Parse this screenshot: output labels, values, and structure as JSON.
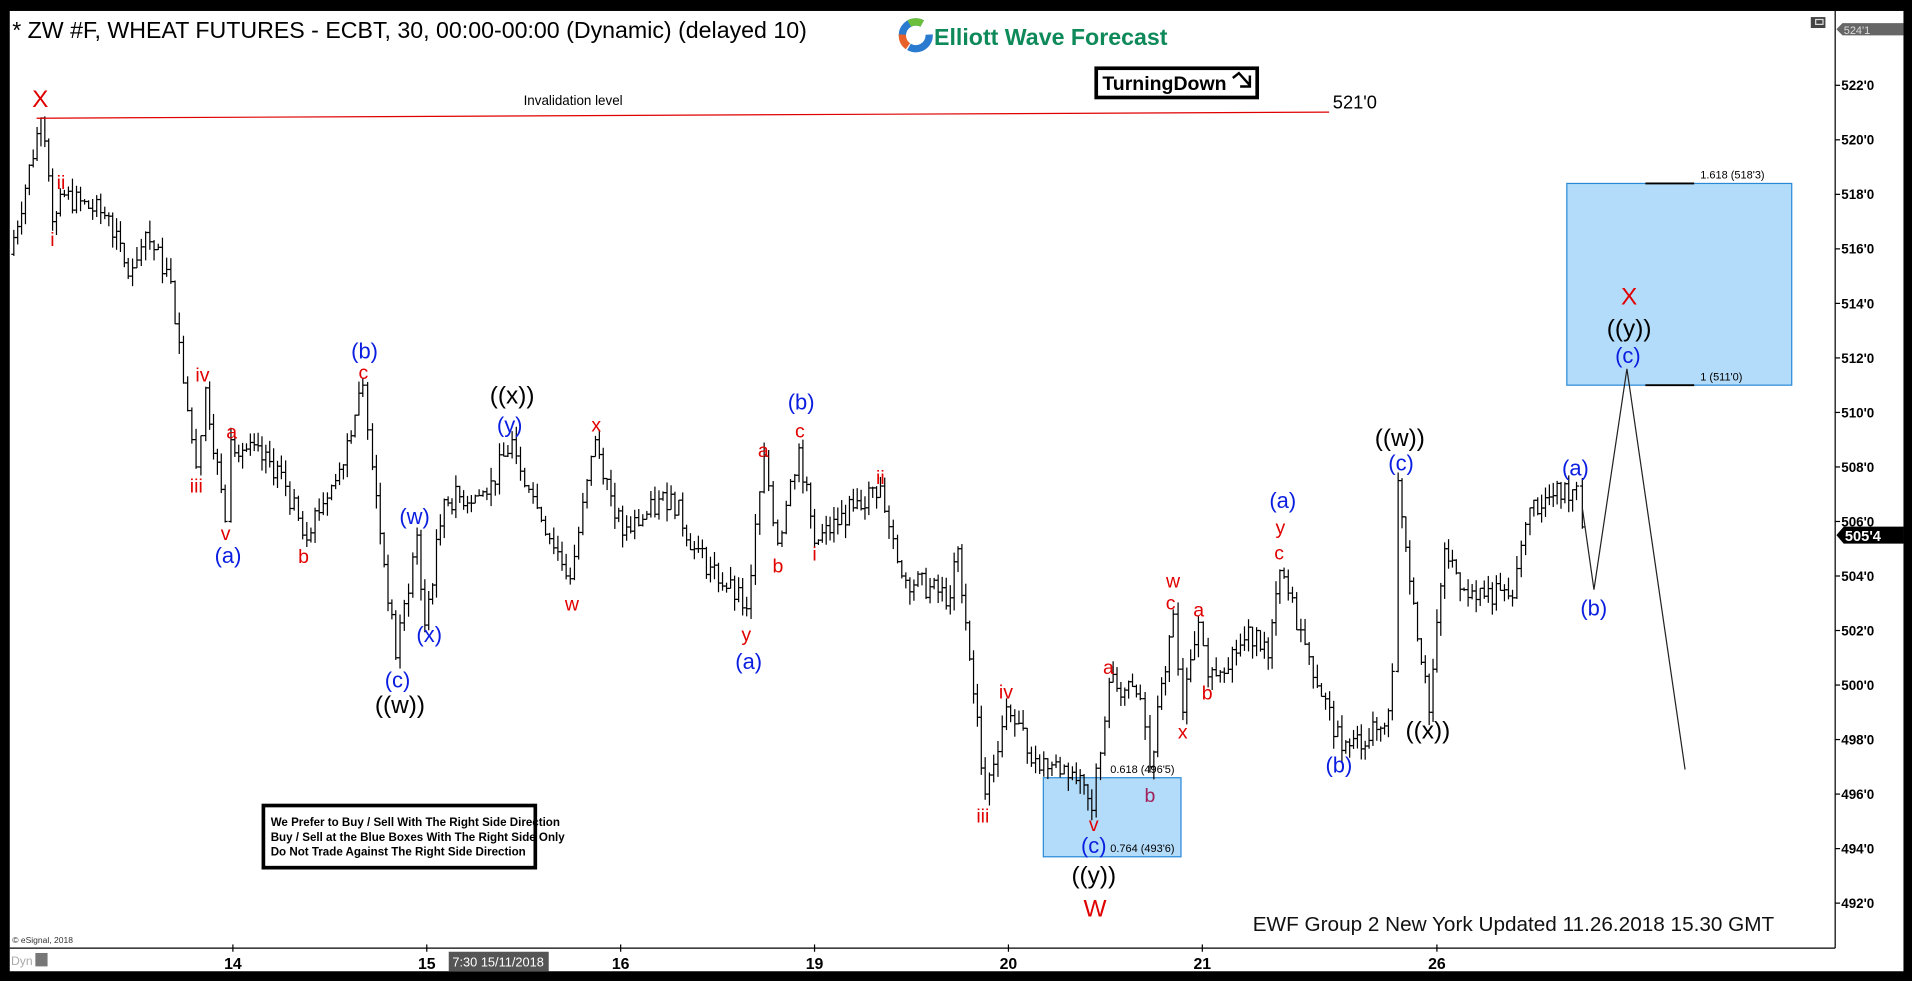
{
  "header": {
    "title": "* ZW #F, WHEAT FUTURES - ECBT, 30, 00:00-00:00 (Dynamic) (delayed 10)",
    "logo_text": "Elliott Wave Forecast",
    "turning_label": "TurningDown",
    "turning_icon": "arrow-down-right-icon"
  },
  "colors": {
    "red": "#e00000",
    "blue": "#0a1ee0",
    "black": "#000000",
    "purple": "#a0205a",
    "box_fill": "#b3dcfa",
    "box_stroke": "#2a8ad8",
    "logo_green": "#0e8a5a"
  },
  "invalidation": {
    "label": "Invalidation level",
    "value_label": "521'0",
    "price": 521.0
  },
  "notice": {
    "lines": [
      "We Prefer to Buy / Sell With The Right Side Direction",
      "Buy / Sell at the Blue Boxes With The Right Side Only",
      "Do Not Trade Against The Right Side Direction"
    ]
  },
  "footer": {
    "updated": "EWF Group 2 New York Updated 11.26.2018 15.30 GMT",
    "copyright": "© eSignal, 2018",
    "dyn": "Dyn",
    "cursor_time": "7:30 15/11/2018"
  },
  "chart_data": {
    "type": "ohlc",
    "ylim": [
      490.5,
      524.1
    ],
    "y_ticks": [
      "522'0",
      "520'0",
      "518'0",
      "516'0",
      "514'0",
      "512'0",
      "510'0",
      "508'0",
      "506'0",
      "504'0",
      "502'0",
      "500'0",
      "498'0",
      "496'0",
      "494'0",
      "492'0"
    ],
    "y_tick_values": [
      522,
      520,
      518,
      516,
      514,
      512,
      510,
      508,
      506,
      504,
      502,
      500,
      498,
      496,
      494,
      492
    ],
    "top_price_label": "524'1",
    "last_price_label": "505'4",
    "last_price": 505.5,
    "x_ticks": [
      {
        "label": "14",
        "s": 1
      },
      {
        "label": "15",
        "s": 2
      },
      {
        "label": "16",
        "s": 3
      },
      {
        "label": "19",
        "s": 4
      },
      {
        "label": "20",
        "s": 5
      },
      {
        "label": "21",
        "s": 6
      },
      {
        "label": "26",
        "s": 7.21
      }
    ],
    "price_pivots": [
      [
        -0.15,
        515.8
      ],
      [
        0.01,
        520.8
      ],
      [
        0.07,
        517.0
      ],
      [
        0.11,
        518.0
      ],
      [
        0.36,
        517.2
      ],
      [
        0.46,
        515.0
      ],
      [
        0.55,
        516.6
      ],
      [
        0.68,
        514.8
      ],
      [
        0.81,
        508.0
      ],
      [
        0.86,
        510.9
      ],
      [
        0.96,
        506.0
      ],
      [
        0.99,
        509.0
      ],
      [
        1.25,
        507.8
      ],
      [
        1.36,
        505.5
      ],
      [
        1.53,
        507.5
      ],
      [
        1.67,
        511.0
      ],
      [
        1.72,
        508.0
      ],
      [
        1.84,
        501.0
      ],
      [
        1.95,
        505.5
      ],
      [
        1.99,
        502.2
      ],
      [
        2.09,
        506.8
      ],
      [
        2.31,
        507.0
      ],
      [
        2.44,
        509.0
      ],
      [
        2.57,
        506.5
      ],
      [
        2.74,
        503.9
      ],
      [
        2.87,
        509.0
      ],
      [
        3.01,
        505.5
      ],
      [
        3.26,
        507.0
      ],
      [
        3.38,
        505.0
      ],
      [
        3.65,
        502.8
      ],
      [
        3.74,
        508.4
      ],
      [
        3.81,
        505.2
      ],
      [
        3.92,
        508.7
      ],
      [
        4.0,
        505.2
      ],
      [
        4.2,
        506.5
      ],
      [
        4.34,
        507.3
      ],
      [
        4.45,
        504.0
      ],
      [
        4.7,
        503.2
      ],
      [
        4.74,
        505.0
      ],
      [
        4.88,
        496.0
      ],
      [
        4.99,
        499.2
      ],
      [
        5.14,
        497.3
      ],
      [
        5.33,
        496.8
      ],
      [
        5.43,
        495.4
      ],
      [
        5.52,
        500.1
      ],
      [
        5.68,
        499.5
      ],
      [
        5.73,
        497.0
      ],
      [
        5.85,
        502.6
      ],
      [
        5.9,
        499.0
      ],
      [
        5.98,
        502.3
      ],
      [
        6.03,
        500.3
      ],
      [
        6.28,
        502.0
      ],
      [
        6.34,
        501.0
      ],
      [
        6.4,
        504.2
      ],
      [
        6.53,
        501.5
      ],
      [
        6.72,
        497.6
      ],
      [
        6.94,
        498.5
      ],
      [
        6.98,
        500.5
      ],
      [
        7.01,
        507.5
      ],
      [
        7.09,
        503.0
      ],
      [
        7.17,
        499.0
      ],
      [
        7.25,
        505.0
      ],
      [
        7.35,
        503.5
      ],
      [
        7.6,
        503.2
      ],
      [
        7.69,
        506.5
      ],
      [
        7.93,
        507.3
      ],
      [
        7.96,
        505.8
      ]
    ],
    "projection": [
      [
        7.96,
        506.5
      ],
      [
        8.02,
        503.5
      ],
      [
        8.19,
        511.6
      ],
      [
        8.49,
        496.9
      ]
    ],
    "fib_boxes": [
      {
        "top": 496.6,
        "bottom": 493.7,
        "s_from": 5.18,
        "s_to": 5.89,
        "top_label": "0.618 (496'5)",
        "bottom_label": "0.764 (493'6)"
      },
      {
        "top": 518.4,
        "bottom": 511.0,
        "s_from": 7.88,
        "s_to": 9.04,
        "top_label": "1.618 (518'3)",
        "bottom_label": "1 (511'0)"
      }
    ],
    "wave_labels": [
      {
        "t": "X",
        "c": "red"
      },
      {
        "t": "ii",
        "c": "red"
      },
      {
        "t": "i",
        "c": "red"
      },
      {
        "t": "iv",
        "c": "red"
      },
      {
        "t": "a",
        "c": "red"
      },
      {
        "t": "iii",
        "c": "red"
      },
      {
        "t": "v",
        "c": "red"
      },
      {
        "t": "(a)",
        "c": "blue"
      },
      {
        "t": "b",
        "c": "red"
      },
      {
        "t": "(b)",
        "c": "blue"
      },
      {
        "t": "c",
        "c": "red"
      },
      {
        "t": "(w)",
        "c": "blue"
      },
      {
        "t": "(x)",
        "c": "blue"
      },
      {
        "t": "(c)",
        "c": "blue"
      },
      {
        "t": "((w))",
        "c": "black"
      },
      {
        "t": "((x))",
        "c": "black"
      },
      {
        "t": "(y)",
        "c": "blue"
      },
      {
        "t": "x",
        "c": "red"
      },
      {
        "t": "w",
        "c": "red"
      },
      {
        "t": "y",
        "c": "red"
      },
      {
        "t": "(a)",
        "c": "blue"
      },
      {
        "t": "a",
        "c": "red"
      },
      {
        "t": "b",
        "c": "red"
      },
      {
        "t": "(b)",
        "c": "blue"
      },
      {
        "t": "c",
        "c": "red"
      },
      {
        "t": "i",
        "c": "red"
      },
      {
        "t": "ii",
        "c": "red"
      },
      {
        "t": "iii",
        "c": "red"
      },
      {
        "t": "iv",
        "c": "red"
      },
      {
        "t": "a",
        "c": "red"
      },
      {
        "t": "v",
        "c": "red"
      },
      {
        "t": "(c)",
        "c": "blue"
      },
      {
        "t": "((y))",
        "c": "black"
      },
      {
        "t": "W",
        "c": "red"
      },
      {
        "t": "b",
        "c": "purple"
      },
      {
        "t": "w",
        "c": "red"
      },
      {
        "t": "c",
        "c": "red"
      },
      {
        "t": "a",
        "c": "red"
      },
      {
        "t": "x",
        "c": "red"
      },
      {
        "t": "b",
        "c": "red"
      },
      {
        "t": "(a)",
        "c": "blue"
      },
      {
        "t": "y",
        "c": "red"
      },
      {
        "t": "c",
        "c": "red"
      },
      {
        "t": "(b)",
        "c": "blue"
      },
      {
        "t": "((w))",
        "c": "black"
      },
      {
        "t": "(c)",
        "c": "blue"
      },
      {
        "t": "((x))",
        "c": "black"
      },
      {
        "t": "(a)",
        "c": "blue"
      },
      {
        "t": "(b)",
        "c": "blue"
      },
      {
        "t": "X",
        "c": "red"
      },
      {
        "t": "((y))",
        "c": "black"
      },
      {
        "t": "(c)",
        "c": "blue"
      }
    ]
  }
}
